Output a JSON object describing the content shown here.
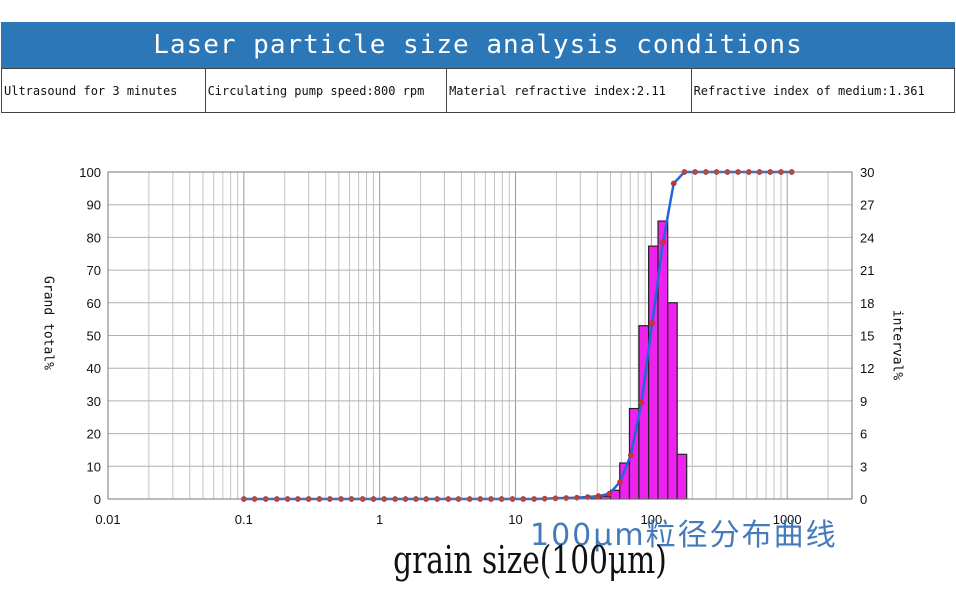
{
  "header": {
    "title": "Laser particle size analysis conditions",
    "conditions": [
      "Ultrasound for 3 minutes",
      "Circulating pump speed:800 rpm",
      "Material refractive index:2.11",
      "Refractive index of medium:1.361"
    ]
  },
  "watermark": {
    "text": "100μm粒径分布曲线"
  },
  "chart_data": {
    "type": "bar",
    "xlabel": "grain size(100μm)",
    "ylabel_left": "Grand total%",
    "ylabel_right": "interval%",
    "x_scale": "log",
    "xlim": [
      0.01,
      3000
    ],
    "x_ticks": [
      "0.01",
      "0.1",
      "1",
      "10",
      "100",
      "1000"
    ],
    "y_left_lim": [
      0,
      100
    ],
    "y_left_ticks": [
      "0",
      "10",
      "20",
      "30",
      "40",
      "50",
      "60",
      "70",
      "80",
      "90",
      "100"
    ],
    "y_right_lim": [
      0,
      30
    ],
    "y_right_ticks": [
      "0",
      "3",
      "6",
      "9",
      "12",
      "15",
      "18",
      "21",
      "24",
      "27",
      "30"
    ],
    "grid": true,
    "series": [
      {
        "kind": "bar",
        "axis": "right",
        "color": "#ee22ee",
        "edges": [
          36,
          42.5,
          50,
          58.5,
          69,
          81,
          95.5,
          112,
          132,
          155,
          182
        ],
        "values": [
          0.05,
          0.25,
          0.8,
          3.3,
          8.3,
          15.9,
          23.2,
          25.5,
          18.0,
          4.1
        ]
      },
      {
        "kind": "line",
        "axis": "left",
        "color": "#2266dd",
        "marker_color": "#cc3333",
        "x": [
          0.1,
          0.12,
          0.145,
          0.175,
          0.21,
          0.25,
          0.3,
          0.36,
          0.43,
          0.52,
          0.62,
          0.75,
          0.9,
          1.08,
          1.3,
          1.55,
          1.85,
          2.2,
          2.65,
          3.2,
          3.8,
          4.6,
          5.5,
          6.6,
          7.9,
          9.5,
          11.4,
          13.7,
          16.4,
          19.7,
          23.6,
          28.3,
          34,
          40.8,
          49,
          58.8,
          70.5,
          84.6,
          101.5,
          121.8,
          146,
          175,
          210,
          252,
          302,
          363,
          435,
          522,
          626,
          751,
          901,
          1080
        ],
        "values": [
          0,
          0,
          0,
          0,
          0,
          0,
          0,
          0,
          0,
          0,
          0,
          0,
          0,
          0,
          0,
          0,
          0,
          0,
          0,
          0,
          0,
          0,
          0,
          0,
          0,
          0,
          0,
          0,
          0.1,
          0.2,
          0.3,
          0.4,
          0.6,
          0.9,
          1.6,
          5.2,
          13.4,
          29.5,
          53.8,
          78.5,
          96.5,
          100,
          100,
          100,
          100,
          100,
          100,
          100,
          100,
          100,
          100,
          100
        ]
      }
    ]
  }
}
